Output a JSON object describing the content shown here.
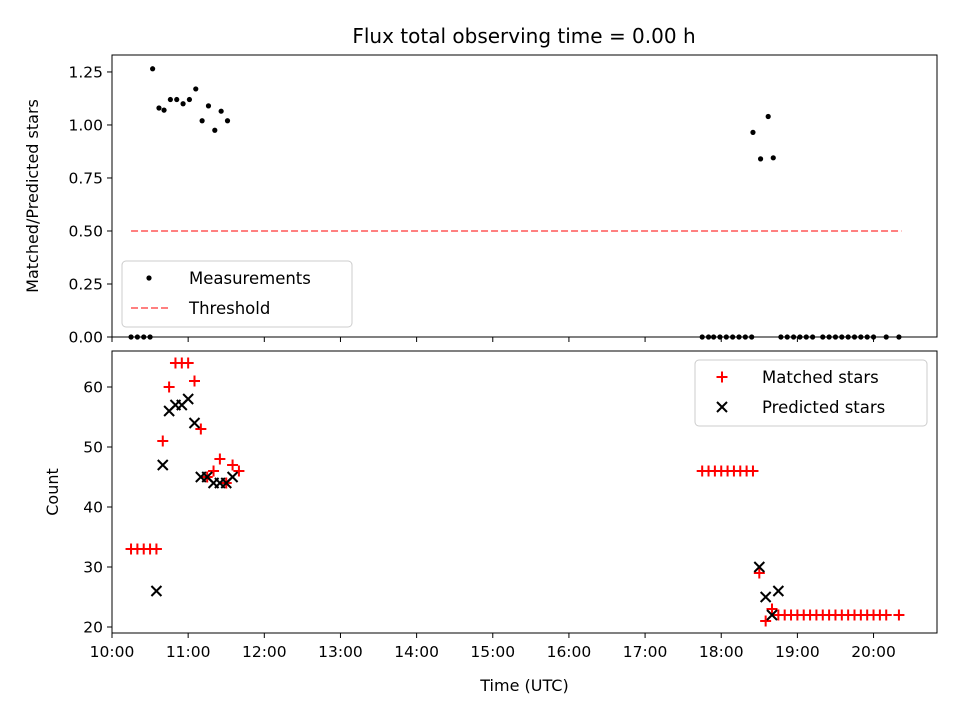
{
  "title": "Flux total observing time = 0.00 h",
  "colors": {
    "matched": "#ff0000",
    "predicted": "#000000",
    "threshold": "#ff8080",
    "measurements": "#000000"
  },
  "chart_data": [
    {
      "type": "scatter",
      "ylabel": "Matched/Predicted stars",
      "xlabel": "",
      "ylim": [
        0,
        1.33
      ],
      "yticks": [
        "0.00",
        "0.25",
        "0.50",
        "0.75",
        "1.00",
        "1.25"
      ],
      "ytick_values": [
        0,
        0.25,
        0.5,
        0.75,
        1.0,
        1.25
      ],
      "legend": {
        "placement": "lower-left",
        "entries": [
          "Measurements",
          "Threshold"
        ]
      },
      "series": [
        {
          "name": "Measurements",
          "marker": "dot",
          "points": [
            [
              "10:15",
              0
            ],
            [
              "10:20",
              0
            ],
            [
              "10:25",
              0
            ],
            [
              "10:30",
              0
            ],
            [
              "10:32",
              1.265
            ],
            [
              "10:37",
              1.08
            ],
            [
              "10:41",
              1.07
            ],
            [
              "10:46",
              1.12
            ],
            [
              "10:51",
              1.12
            ],
            [
              "10:56",
              1.1
            ],
            [
              "11:01",
              1.12
            ],
            [
              "11:06",
              1.17
            ],
            [
              "11:11",
              1.02
            ],
            [
              "11:16",
              1.09
            ],
            [
              "11:21",
              0.975
            ],
            [
              "11:26",
              1.065
            ],
            [
              "11:31",
              1.02
            ],
            [
              "17:45",
              0
            ],
            [
              "17:50",
              0
            ],
            [
              "17:54",
              0
            ],
            [
              "17:59",
              0
            ],
            [
              "18:04",
              0
            ],
            [
              "18:09",
              0
            ],
            [
              "18:14",
              0
            ],
            [
              "18:19",
              0
            ],
            [
              "18:24",
              0
            ],
            [
              "18:25",
              0.965
            ],
            [
              "18:31",
              0.84
            ],
            [
              "18:37",
              1.04
            ],
            [
              "18:41",
              0.845
            ],
            [
              "18:47",
              0
            ],
            [
              "18:52",
              0
            ],
            [
              "18:57",
              0
            ],
            [
              "19:02",
              0
            ],
            [
              "19:07",
              0
            ],
            [
              "19:12",
              0
            ],
            [
              "19:20",
              0
            ],
            [
              "19:25",
              0
            ],
            [
              "19:30",
              0
            ],
            [
              "19:35",
              0
            ],
            [
              "19:40",
              0
            ],
            [
              "19:45",
              0
            ],
            [
              "19:50",
              0
            ],
            [
              "19:55",
              0
            ],
            [
              "20:00",
              0
            ],
            [
              "20:10",
              0
            ],
            [
              "20:20",
              0
            ]
          ]
        },
        {
          "name": "Threshold",
          "line": "dashed",
          "points": [
            [
              "10:15",
              0.5
            ],
            [
              "20:22",
              0.5
            ]
          ]
        }
      ]
    },
    {
      "type": "scatter",
      "ylabel": "Count",
      "xlabel": "Time (UTC)",
      "ylim": [
        19,
        66
      ],
      "yticks": [
        "20",
        "30",
        "40",
        "50",
        "60"
      ],
      "ytick_values": [
        20,
        30,
        40,
        50,
        60
      ],
      "xlim": [
        "10:00",
        "20:50"
      ],
      "xticks": [
        "10:00",
        "11:00",
        "12:00",
        "13:00",
        "14:00",
        "15:00",
        "16:00",
        "17:00",
        "18:00",
        "19:00",
        "20:00"
      ],
      "legend": {
        "placement": "upper-right",
        "entries": [
          "Matched stars",
          "Predicted stars"
        ]
      },
      "series": [
        {
          "name": "Matched stars",
          "marker": "plus",
          "points": [
            [
              "10:15",
              33
            ],
            [
              "10:20",
              33
            ],
            [
              "10:25",
              33
            ],
            [
              "10:30",
              33
            ],
            [
              "10:35",
              33
            ],
            [
              "10:40",
              51
            ],
            [
              "10:45",
              60
            ],
            [
              "10:50",
              64
            ],
            [
              "10:55",
              64
            ],
            [
              "11:00",
              64
            ],
            [
              "11:05",
              61
            ],
            [
              "11:10",
              53
            ],
            [
              "11:15",
              45
            ],
            [
              "11:20",
              46
            ],
            [
              "11:25",
              48
            ],
            [
              "11:30",
              44
            ],
            [
              "11:35",
              47
            ],
            [
              "11:40",
              46
            ],
            [
              "17:45",
              46
            ],
            [
              "17:50",
              46
            ],
            [
              "17:55",
              46
            ],
            [
              "18:00",
              46
            ],
            [
              "18:05",
              46
            ],
            [
              "18:10",
              46
            ],
            [
              "18:15",
              46
            ],
            [
              "18:20",
              46
            ],
            [
              "18:25",
              46
            ],
            [
              "18:30",
              29
            ],
            [
              "18:35",
              21
            ],
            [
              "18:40",
              23
            ],
            [
              "18:45",
              22
            ],
            [
              "18:50",
              22
            ],
            [
              "18:55",
              22
            ],
            [
              "19:00",
              22
            ],
            [
              "19:05",
              22
            ],
            [
              "19:10",
              22
            ],
            [
              "19:15",
              22
            ],
            [
              "19:20",
              22
            ],
            [
              "19:25",
              22
            ],
            [
              "19:30",
              22
            ],
            [
              "19:35",
              22
            ],
            [
              "19:40",
              22
            ],
            [
              "19:45",
              22
            ],
            [
              "19:50",
              22
            ],
            [
              "19:55",
              22
            ],
            [
              "20:00",
              22
            ],
            [
              "20:05",
              22
            ],
            [
              "20:10",
              22
            ],
            [
              "20:20",
              22
            ]
          ]
        },
        {
          "name": "Predicted stars",
          "marker": "x",
          "points": [
            [
              "10:35",
              26
            ],
            [
              "10:40",
              47
            ],
            [
              "10:45",
              56
            ],
            [
              "10:50",
              57
            ],
            [
              "10:55",
              57
            ],
            [
              "11:00",
              58
            ],
            [
              "11:05",
              54
            ],
            [
              "11:10",
              45
            ],
            [
              "11:15",
              45
            ],
            [
              "11:20",
              44
            ],
            [
              "11:25",
              44
            ],
            [
              "11:30",
              44
            ],
            [
              "11:35",
              45
            ],
            [
              "18:30",
              30
            ],
            [
              "18:35",
              25
            ],
            [
              "18:40",
              22
            ],
            [
              "18:45",
              26
            ]
          ]
        }
      ]
    }
  ]
}
